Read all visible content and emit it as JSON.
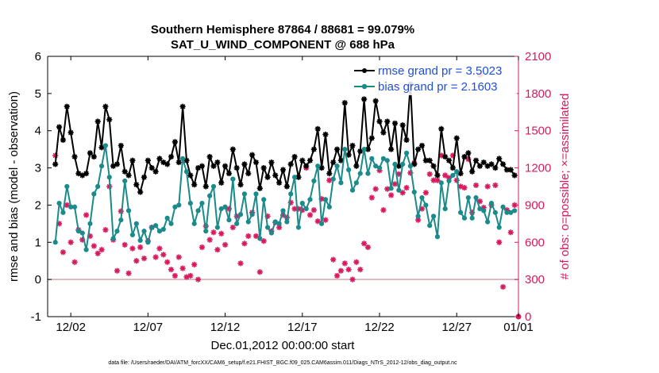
{
  "chart_data": {
    "type": "line",
    "title": "Southern Hemisphere 87864 / 88681 = 99.079%",
    "subtitle": "SAT_U_WIND_COMPONENT @ 688 hPa",
    "xlabel": "Dec.01,2012 00:00:00 start",
    "ylabel": "rmse and bias (model - observation)",
    "y2label": "# of obs: o=possible; ×=assimilated",
    "footnote": "data file: /Users/raeder/DAI/ATM_forcXX/CAM6_setup/f.e21.FHIST_BGC.f09_025.CAM6assim.011/Diags_NTrS_2012-12/obs_diag_output.nc",
    "x_range": [
      0.5,
      31.0
    ],
    "ylim": [
      -1,
      6
    ],
    "y2lim": [
      0,
      2100
    ],
    "y_ticks": [
      "-1",
      "0",
      "1",
      "2",
      "3",
      "4",
      "5",
      "6"
    ],
    "y2_ticks": [
      "0",
      "300",
      "600",
      "900",
      "1200",
      "1500",
      "1800",
      "2100"
    ],
    "x_tick_labels": [
      {
        "label": "12/02",
        "x": 2
      },
      {
        "label": "12/07",
        "x": 7
      },
      {
        "label": "12/12",
        "x": 12
      },
      {
        "label": "12/17",
        "x": 17
      },
      {
        "label": "12/22",
        "x": 22
      },
      {
        "label": "12/27",
        "x": 27
      },
      {
        "label": "01/01",
        "x": 32
      }
    ],
    "x": [
      1.0,
      1.25,
      1.5,
      1.75,
      2.0,
      2.25,
      2.5,
      2.75,
      3.0,
      3.25,
      3.5,
      3.75,
      4.0,
      4.25,
      4.5,
      4.75,
      5.0,
      5.25,
      5.5,
      5.75,
      6.0,
      6.25,
      6.5,
      6.75,
      7.0,
      7.25,
      7.5,
      7.75,
      8.0,
      8.25,
      8.5,
      8.75,
      9.0,
      9.25,
      9.5,
      9.75,
      10.0,
      10.25,
      10.5,
      10.75,
      11.0,
      11.25,
      11.5,
      11.75,
      12.0,
      12.25,
      12.5,
      12.75,
      13.0,
      13.25,
      13.5,
      13.75,
      14.0,
      14.25,
      14.5,
      14.75,
      15.0,
      15.25,
      15.5,
      15.75,
      16.0,
      16.25,
      16.5,
      16.75,
      17.0,
      17.25,
      17.5,
      17.75,
      18.0,
      18.25,
      18.5,
      18.75,
      19.0,
      19.25,
      19.5,
      19.75,
      20.0,
      20.25,
      20.5,
      20.75,
      21.0,
      21.25,
      21.5,
      21.75,
      22.0,
      22.25,
      22.5,
      22.75,
      23.0,
      23.25,
      23.5,
      23.75,
      24.0,
      24.25,
      24.5,
      24.75,
      25.0,
      25.25,
      25.5,
      25.75,
      26.0,
      26.25,
      26.5,
      26.75,
      27.0,
      27.25,
      27.5,
      27.75,
      28.0,
      28.25,
      28.5,
      28.75,
      29.0,
      29.25,
      29.5,
      29.75,
      30.0,
      30.25,
      30.5,
      30.75
    ],
    "series": [
      {
        "name": "rmse grand pr = 3.5023",
        "color": "#000000",
        "marker": "*",
        "values": [
          3.1,
          4.1,
          3.75,
          4.65,
          3.95,
          3.3,
          2.85,
          2.8,
          2.85,
          3.4,
          3.3,
          4.25,
          3.55,
          4.65,
          4.3,
          3.05,
          3.1,
          3.6,
          2.9,
          2.8,
          3.2,
          2.55,
          2.35,
          2.75,
          3.2,
          3.0,
          2.9,
          3.25,
          3.15,
          3.1,
          3.3,
          3.7,
          3.15,
          4.65,
          3.2,
          2.8,
          2.55,
          3.0,
          3.05,
          2.5,
          3.3,
          3.05,
          3.15,
          2.6,
          3.05,
          2.85,
          3.5,
          3.0,
          2.55,
          3.1,
          2.85,
          3.35,
          3.15,
          2.45,
          3.0,
          2.75,
          3.15,
          2.8,
          2.6,
          2.95,
          2.5,
          3.1,
          3.3,
          2.75,
          3.2,
          3.05,
          3.2,
          3.5,
          4.05,
          3.0,
          3.9,
          2.85,
          3.15,
          3.5,
          3.2,
          4.75,
          3.35,
          3.6,
          3.05,
          3.45,
          4.85,
          3.5,
          3.8,
          4.8,
          4.25,
          3.95,
          4.25,
          3.5,
          4.2,
          3.05,
          4.15,
          3.75,
          5.25,
          3.1,
          3.5,
          3.6,
          3.2,
          3.2,
          3.05,
          2.8,
          4.05,
          3.3,
          3.2,
          3.0,
          3.8,
          2.85,
          3.3,
          3.4,
          2.9,
          3.2,
          3.05,
          3.15,
          3.05,
          3.1,
          3.0,
          3.25,
          3.1,
          2.95,
          2.95,
          2.8
        ]
      },
      {
        "name": "bias grand pr = 2.1603",
        "color": "#1a8a8a",
        "marker": "o",
        "values": [
          1.0,
          2.05,
          1.8,
          2.5,
          1.95,
          1.95,
          1.3,
          1.25,
          0.8,
          1.5,
          2.3,
          2.5,
          3.05,
          3.6,
          2.75,
          1.1,
          1.3,
          1.6,
          2.65,
          1.85,
          1.2,
          1.5,
          1.05,
          1.3,
          1.0,
          1.4,
          1.45,
          1.3,
          1.35,
          1.65,
          1.5,
          1.95,
          2.0,
          3.25,
          2.9,
          2.05,
          1.5,
          1.85,
          2.05,
          1.3,
          2.25,
          2.5,
          1.4,
          1.9,
          1.95,
          1.6,
          2.7,
          1.5,
          1.75,
          2.3,
          1.55,
          1.75,
          2.3,
          1.1,
          2.15,
          1.4,
          1.25,
          1.55,
          1.5,
          1.85,
          1.55,
          2.3,
          2.75,
          1.4,
          2.05,
          1.9,
          2.15,
          2.65,
          3.05,
          1.5,
          2.15,
          1.95,
          2.7,
          3.05,
          2.6,
          3.5,
          2.95,
          2.4,
          2.6,
          2.85,
          3.5,
          2.85,
          3.25,
          3.05,
          3.0,
          3.25,
          3.2,
          2.45,
          3.1,
          2.4,
          3.1,
          3.4,
          3.05,
          2.35,
          1.7,
          2.2,
          2.0,
          1.45,
          1.7,
          1.15,
          2.6,
          1.9,
          2.65,
          2.8,
          2.9,
          1.8,
          1.65,
          2.2,
          1.65,
          2.2,
          1.9,
          1.85,
          1.55,
          2.05,
          1.8,
          1.4,
          1.95,
          1.8,
          1.8,
          1.85
        ]
      },
      {
        "name": "assimilated",
        "color": "#d8195e",
        "marker": "x",
        "axis": "right",
        "values": [
          1300,
          750,
          520,
          900,
          600,
          440,
          700,
          620,
          820,
          650,
          570,
          510,
          540,
          700,
          1050,
          620,
          370,
          850,
          580,
          350,
          550,
          450,
          560,
          470,
          610,
          720,
          480,
          550,
          500,
          440,
          380,
          330,
          480,
          390,
          320,
          330,
          420,
          300,
          560,
          730,
          620,
          680,
          540,
          670,
          580,
          870,
          720,
          810,
          430,
          590,
          650,
          840,
          650,
          360,
          610,
          810,
          690,
          760,
          720,
          820,
          800,
          920,
          870,
          870,
          860,
          1200,
          820,
          860,
          770,
          950,
          780,
          1100,
          460,
          330,
          370,
          430,
          380,
          300,
          440,
          380,
          590,
          560,
          960,
          1030,
          1180,
          860,
          1030,
          980,
          1070,
          1150,
          1000,
          1040,
          1160,
          1240,
          780,
          870,
          1000,
          1150,
          1100,
          1100,
          1300,
          1140,
          1120,
          1300,
          1100,
          1050,
          1040,
          1270,
          840,
          1060,
          930,
          880,
          1050,
          900,
          1060,
          600,
          240,
          860,
          680,
          900
        ]
      }
    ],
    "legend": {
      "position": "top-right",
      "items": [
        "rmse grand pr = 3.5023",
        "bias grand pr = 2.1603"
      ]
    },
    "outlier_points": [
      {
        "x": 28.5,
        "y2": 1950
      },
      {
        "x": 31.0,
        "y2": 0
      }
    ],
    "zero_line_color": "#d4a8ad",
    "right_axis_color": "#d8195e"
  }
}
